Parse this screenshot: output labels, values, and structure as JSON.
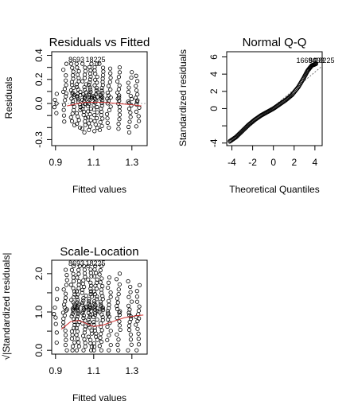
{
  "chart_data": [
    {
      "type": "scatter",
      "title": "Residuals vs Fitted",
      "xlabel": "Fitted values",
      "ylabel": "Residuals",
      "xlim": [
        0.88,
        1.38
      ],
      "ylim": [
        -0.35,
        0.43
      ],
      "xticks": [
        0.9,
        1.1,
        1.3
      ],
      "xtick_labels": [
        "0.9",
        "1.1",
        "1.3"
      ],
      "yticks": [
        -0.3,
        -0.2,
        -0.1,
        0.0,
        0.1,
        0.2,
        0.3,
        0.4
      ],
      "ytick_labels": [
        "-0.3",
        "",
        "",
        "0.0",
        "",
        "0.2",
        "",
        "0.4"
      ],
      "columns": [
        {
          "x": 0.9,
          "lo": -0.08,
          "hi": 0.08,
          "n": 5
        },
        {
          "x": 0.95,
          "lo": -0.15,
          "hi": 0.33,
          "n": 14
        },
        {
          "x": 0.99,
          "lo": -0.18,
          "hi": 0.33,
          "n": 22
        },
        {
          "x": 1.02,
          "lo": -0.2,
          "hi": 0.33,
          "n": 24
        },
        {
          "x": 1.05,
          "lo": -0.24,
          "hi": 0.33,
          "n": 26
        },
        {
          "x": 1.08,
          "lo": -0.22,
          "hi": 0.33,
          "n": 28
        },
        {
          "x": 1.11,
          "lo": -0.23,
          "hi": 0.33,
          "n": 28
        },
        {
          "x": 1.14,
          "lo": -0.22,
          "hi": 0.33,
          "n": 24
        },
        {
          "x": 1.18,
          "lo": -0.2,
          "hi": 0.29,
          "n": 18
        },
        {
          "x": 1.23,
          "lo": -0.21,
          "hi": 0.3,
          "n": 18
        },
        {
          "x": 1.29,
          "lo": -0.24,
          "hi": 0.26,
          "n": 16
        },
        {
          "x": 1.33,
          "lo": -0.19,
          "hi": 0.23,
          "n": 14
        }
      ],
      "smooth": {
        "x": [
          0.96,
          1.02,
          1.06,
          1.1,
          1.15,
          1.22,
          1.3,
          1.35
        ],
        "y": [
          -0.02,
          0.0,
          0.01,
          0.01,
          0.01,
          0.0,
          -0.01,
          -0.02
        ]
      },
      "point_labels": [
        "8693",
        "18225"
      ]
    },
    {
      "type": "scatter",
      "title": "Normal Q-Q",
      "xlabel": "Theoretical Quantiles",
      "ylabel": "Standardized residuals",
      "xlim": [
        -4.5,
        4.7
      ],
      "ylim": [
        -4.3,
        6.6
      ],
      "xticks": [
        -4,
        -2,
        0,
        2,
        4
      ],
      "xtick_labels": [
        "-4",
        "-2",
        "0",
        "2",
        "4"
      ],
      "yticks": [
        -4,
        -2,
        0,
        2,
        4,
        6
      ],
      "ytick_labels": [
        "-4",
        "",
        "0",
        "2",
        "4",
        "6"
      ],
      "curve": {
        "x": [
          -4.2,
          -3.6,
          -3.0,
          -2.4,
          -1.8,
          -1.2,
          -0.6,
          0.0,
          0.6,
          1.2,
          1.8,
          2.4,
          2.9,
          3.3,
          3.7,
          4.1
        ],
        "y": [
          -3.8,
          -3.3,
          -2.6,
          -1.9,
          -1.3,
          -0.8,
          -0.4,
          0.0,
          0.5,
          1.0,
          1.6,
          2.5,
          3.5,
          4.4,
          5.0,
          5.2
        ]
      },
      "ref_line": {
        "slope": 1.05,
        "intercept": 0.0
      },
      "point_labels": [
        "16694",
        "8693",
        "18225"
      ]
    },
    {
      "type": "scatter",
      "title": "Scale-Location",
      "xlabel": "Fitted values",
      "ylabel": "√|Standardized residuals|",
      "xlim": [
        0.88,
        1.38
      ],
      "ylim": [
        -0.1,
        2.35
      ],
      "xticks": [
        0.9,
        1.1,
        1.3
      ],
      "xtick_labels": [
        "0.9",
        "1.1",
        "1.3"
      ],
      "yticks": [
        0.0,
        0.5,
        1.0,
        1.5,
        2.0
      ],
      "ytick_labels": [
        "0.0",
        "",
        "1.0",
        "",
        "2.0"
      ],
      "columns": [
        {
          "x": 0.9,
          "lo": 0.2,
          "hi": 1.6,
          "n": 8
        },
        {
          "x": 0.95,
          "lo": 0.0,
          "hi": 2.1,
          "n": 22
        },
        {
          "x": 0.99,
          "lo": 0.0,
          "hi": 2.2,
          "n": 30
        },
        {
          "x": 1.02,
          "lo": 0.0,
          "hi": 2.2,
          "n": 30
        },
        {
          "x": 1.05,
          "lo": 0.0,
          "hi": 2.2,
          "n": 32
        },
        {
          "x": 1.08,
          "lo": 0.0,
          "hi": 2.2,
          "n": 34
        },
        {
          "x": 1.11,
          "lo": 0.0,
          "hi": 2.2,
          "n": 34
        },
        {
          "x": 1.14,
          "lo": 0.0,
          "hi": 2.2,
          "n": 28
        },
        {
          "x": 1.18,
          "lo": 0.0,
          "hi": 1.9,
          "n": 20
        },
        {
          "x": 1.23,
          "lo": 0.0,
          "hi": 2.0,
          "n": 20
        },
        {
          "x": 1.29,
          "lo": 0.0,
          "hi": 1.8,
          "n": 18
        },
        {
          "x": 1.33,
          "lo": 0.0,
          "hi": 1.7,
          "n": 16
        }
      ],
      "smooth": {
        "x": [
          0.93,
          0.98,
          1.02,
          1.06,
          1.1,
          1.15,
          1.2,
          1.26,
          1.32,
          1.36
        ],
        "y": [
          0.55,
          0.75,
          0.78,
          0.7,
          0.62,
          0.66,
          0.75,
          0.85,
          0.9,
          0.92
        ]
      },
      "point_labels": [
        "8693",
        "18225"
      ]
    }
  ]
}
